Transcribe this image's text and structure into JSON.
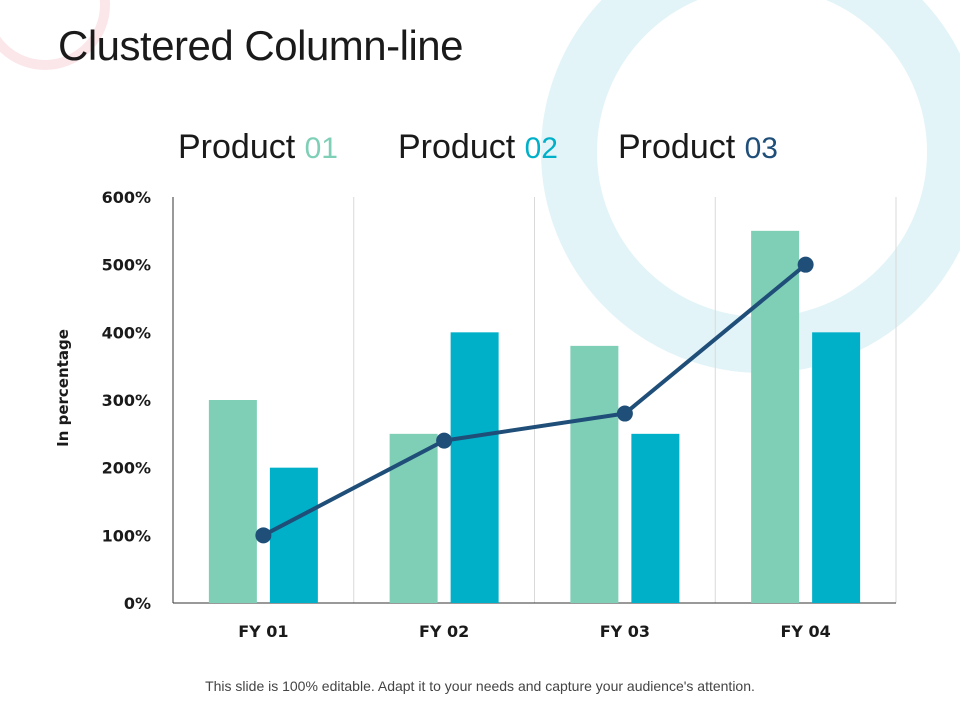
{
  "slide": {
    "title": "Clustered Column-line",
    "footer": "This slide is 100% editable. Adapt it to your needs and capture your audience's attention."
  },
  "legend": [
    {
      "prefix": "Product ",
      "num": "01",
      "color": "#7fcfb7"
    },
    {
      "prefix": "Product ",
      "num": "02",
      "color": "#00b0c8"
    },
    {
      "prefix": "Product ",
      "num": "03",
      "color": "#1f4e79"
    }
  ],
  "chart_data": {
    "type": "bar",
    "title": "Clustered Column-line",
    "categories": [
      "FY 01",
      "FY 02",
      "FY 03",
      "FY 04"
    ],
    "series": [
      {
        "name": "Product 01",
        "kind": "bar",
        "color": "#7fcfb7",
        "values": [
          300,
          250,
          380,
          550
        ]
      },
      {
        "name": "Product 02",
        "kind": "bar",
        "color": "#00b0c8",
        "values": [
          200,
          400,
          250,
          400
        ]
      },
      {
        "name": "Product 03",
        "kind": "line",
        "color": "#1f4e79",
        "values": [
          100,
          240,
          280,
          500
        ]
      }
    ],
    "ylabel": "In percentage",
    "xlabel": "",
    "ylim": [
      0,
      600
    ],
    "yticks": [
      0,
      100,
      200,
      300,
      400,
      500,
      600
    ],
    "ytick_labels": [
      "0%",
      "100%",
      "200%",
      "300%",
      "400%",
      "500%",
      "600%"
    ],
    "grid": "vertical category separators",
    "legend_position": "top"
  }
}
